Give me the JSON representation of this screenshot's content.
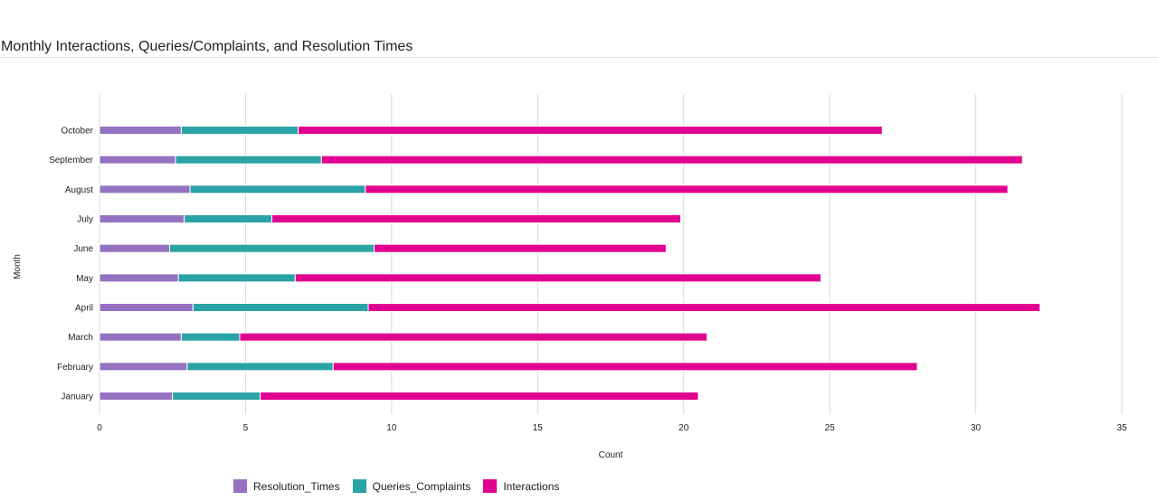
{
  "title": "Monthly Interactions, Queries/Complaints, and Resolution Times",
  "chart_data": {
    "type": "bar",
    "orientation": "horizontal",
    "stacked": true,
    "categories": [
      "January",
      "February",
      "March",
      "April",
      "May",
      "June",
      "July",
      "August",
      "September",
      "October"
    ],
    "series": [
      {
        "name": "Resolution_Times",
        "color": "#9472c1",
        "values": [
          2.5,
          3.0,
          2.8,
          3.2,
          2.7,
          2.4,
          2.9,
          3.1,
          2.6,
          2.8
        ]
      },
      {
        "name": "Queries_Complaints",
        "color": "#2aa3a6",
        "values": [
          3,
          5,
          2,
          6,
          4,
          7,
          3,
          6,
          5,
          4
        ]
      },
      {
        "name": "Interactions",
        "color": "#e1008f",
        "values": [
          15,
          20,
          16,
          23,
          18,
          10,
          14,
          22,
          24,
          20
        ]
      }
    ],
    "xlabel": "Count",
    "ylabel": "Month",
    "xlim": [
      0,
      35
    ],
    "xticks": [
      0,
      5,
      10,
      15,
      20,
      25,
      30,
      35
    ],
    "grid": "vertical",
    "legend_position": "bottom"
  }
}
